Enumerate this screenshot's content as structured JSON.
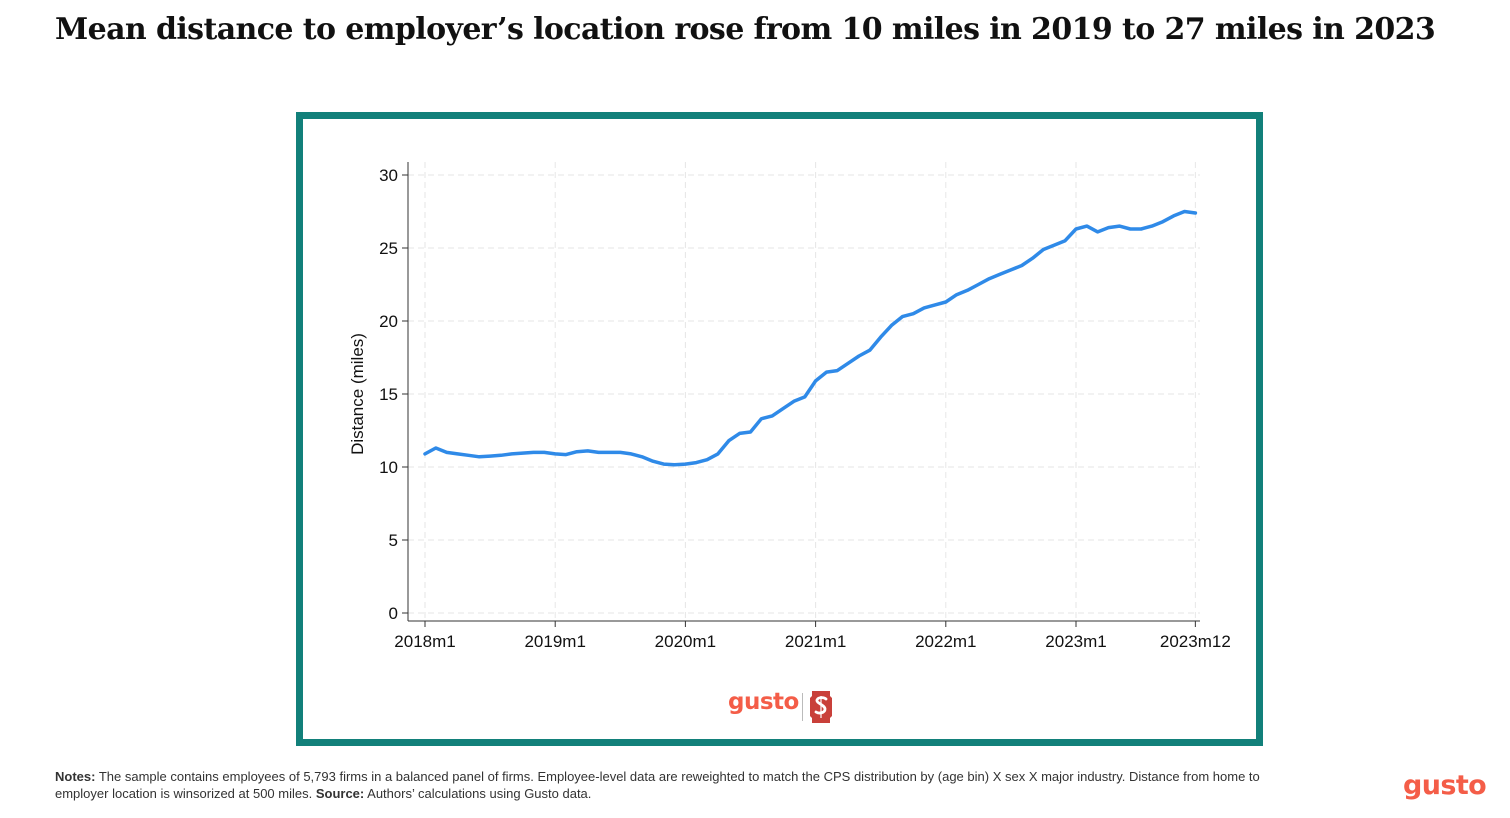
{
  "title": "Mean distance to employer’s location rose from 10 miles in 2019 to 27 miles in 2023",
  "colors": {
    "frame": "#12807a",
    "line": "#2f8ae8",
    "brand": "#f45d48",
    "stanford_red": "#c9403a"
  },
  "logos": {
    "gusto_small": "gusto",
    "gusto_big": "gusto",
    "stanford": "stanford-s-logo"
  },
  "notes": {
    "notes_label": "Notes:",
    "notes_text": " The sample contains employees of 5,793 firms in a balanced panel of firms. Employee-level data are reweighted to match the CPS distribution by (age bin) X sex X major industry. Distance from home to employer location is winsorized at 500 miles. ",
    "source_label": "Source:",
    "source_text": " Authors’ calculations using Gusto data."
  },
  "chart_data": {
    "type": "line",
    "title": "",
    "xlabel": "",
    "ylabel": "Distance (miles)",
    "ylim": [
      0,
      30
    ],
    "yticks": [
      0,
      5,
      10,
      15,
      20,
      25,
      30
    ],
    "xticks": [
      "2018m1",
      "2019m1",
      "2020m1",
      "2021m1",
      "2022m1",
      "2023m1",
      "2023m12"
    ],
    "xtick_months": [
      0,
      12,
      24,
      36,
      48,
      60,
      71
    ],
    "grid": true,
    "series": [
      {
        "values": [
          10.9,
          11.3,
          11.0,
          10.9,
          10.8,
          10.7,
          10.75,
          10.8,
          10.9,
          10.95,
          11.0,
          11.0,
          10.9,
          10.85,
          11.05,
          11.1,
          11.0,
          11.0,
          11.0,
          10.9,
          10.7,
          10.4,
          10.2,
          10.15,
          10.2,
          10.3,
          10.5,
          10.9,
          11.8,
          12.3,
          12.4,
          13.3,
          13.5,
          14.0,
          14.5,
          14.8,
          15.9,
          16.5,
          16.6,
          17.1,
          17.6,
          18.0,
          18.9,
          19.7,
          20.3,
          20.5,
          20.9,
          21.1,
          21.3,
          21.8,
          22.1,
          22.5,
          22.9,
          23.2,
          23.5,
          23.8,
          24.3,
          24.9,
          25.2,
          25.5,
          26.3,
          26.5,
          26.1,
          26.4,
          26.5,
          26.3,
          26.3,
          26.5,
          26.8,
          27.2,
          27.5,
          27.4
        ]
      }
    ]
  }
}
